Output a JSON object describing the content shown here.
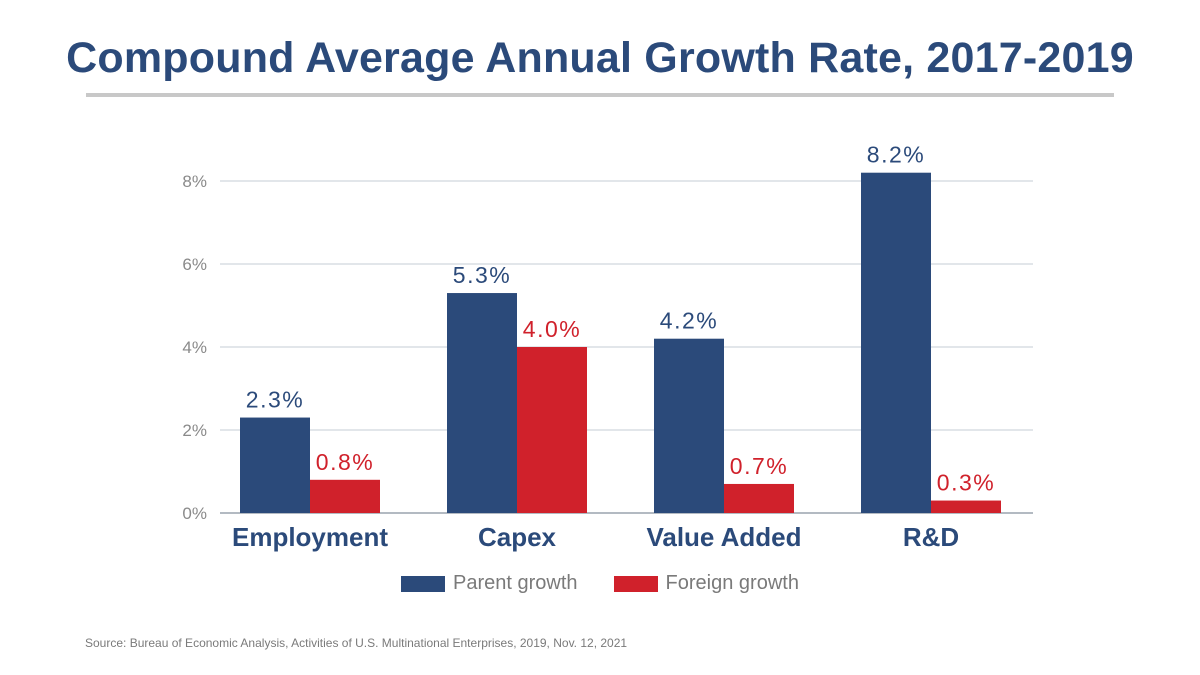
{
  "title": "Compound Average Annual Growth Rate, 2017-2019",
  "source": "Source: Bureau of Economic Analysis, Activities of U.S. Multinational Enterprises, 2019, Nov. 12, 2021",
  "colors": {
    "parent": "#2b4a7a",
    "foreign": "#d0212b",
    "grid": "#c4ccd6",
    "title": "#2b4a7a"
  },
  "chart_data": {
    "type": "bar",
    "title": "Compound Average Annual Growth Rate, 2017-2019",
    "categories": [
      "Employment",
      "Capex",
      "Value Added",
      "R&D"
    ],
    "series": [
      {
        "name": "Parent growth",
        "values": [
          2.3,
          5.3,
          4.2,
          8.2
        ],
        "labels": [
          "2.3%",
          "5.3%",
          "4.2%",
          "8.2%"
        ]
      },
      {
        "name": "Foreign growth",
        "values": [
          0.8,
          4.0,
          0.7,
          0.3
        ],
        "labels": [
          "0.8%",
          "4.0%",
          "0.7%",
          "0.3%"
        ]
      }
    ],
    "yticks": [
      0,
      2,
      4,
      6,
      8
    ],
    "ytick_labels": [
      "0%",
      "2%",
      "4%",
      "6%",
      "8%"
    ],
    "ylim": [
      0,
      8.2
    ],
    "xlabel": "",
    "ylabel": "",
    "grid": true,
    "legend": "bottom-center"
  }
}
